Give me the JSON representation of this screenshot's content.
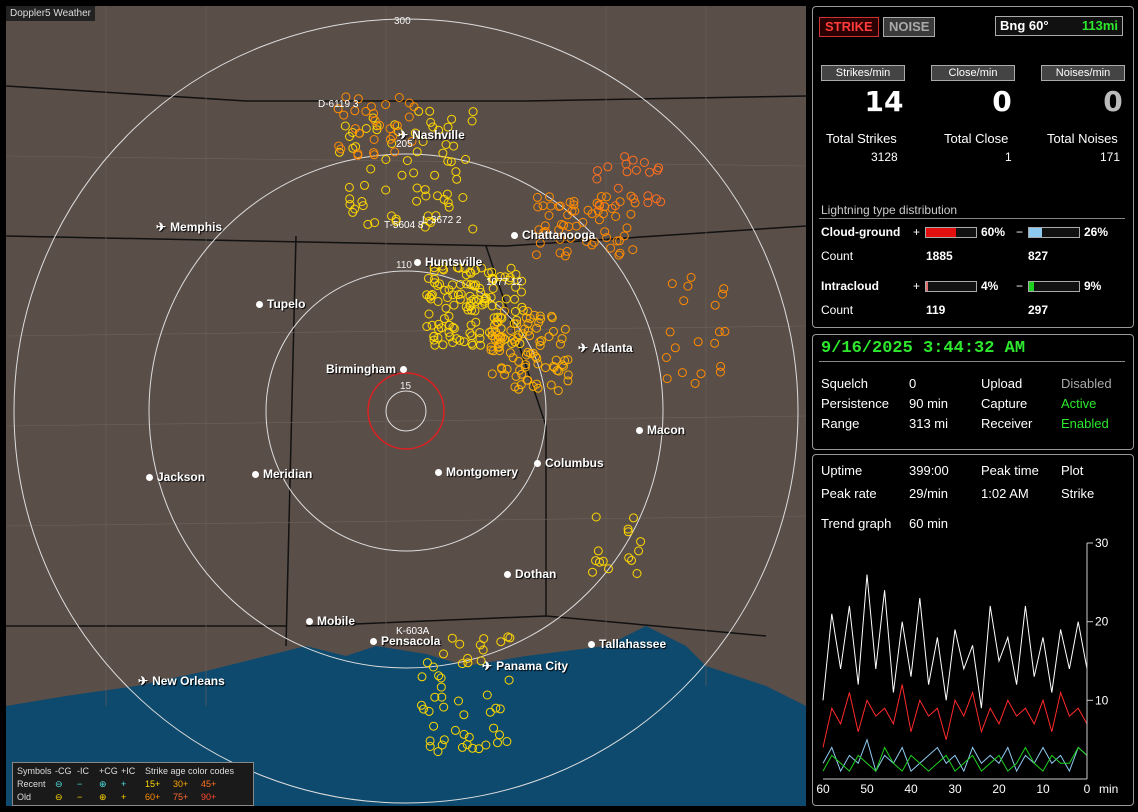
{
  "map": {
    "title": "Doppler5 Weather",
    "rings": [
      "300",
      "110",
      "15"
    ],
    "cities": [
      {
        "name": "Nashville",
        "icon": "airport-icon"
      },
      {
        "name": "Memphis",
        "icon": "airport-icon"
      },
      {
        "name": "Chattanooga",
        "icon": "city-dot"
      },
      {
        "name": "Huntsville",
        "icon": "city-dot"
      },
      {
        "name": "Tupelo",
        "icon": "city-dot"
      },
      {
        "name": "Atlanta",
        "icon": "airport-icon"
      },
      {
        "name": "Birmingham",
        "icon": "city-dot"
      },
      {
        "name": "Macon",
        "icon": "city-dot"
      },
      {
        "name": "Jackson",
        "icon": "city-dot"
      },
      {
        "name": "Meridian",
        "icon": "city-dot"
      },
      {
        "name": "Montgomery",
        "icon": "city-dot"
      },
      {
        "name": "Columbus",
        "icon": "city-dot"
      },
      {
        "name": "Dothan",
        "icon": "city-dot"
      },
      {
        "name": "Mobile",
        "icon": "city-dot"
      },
      {
        "name": "Pensacola",
        "icon": "city-dot"
      },
      {
        "name": "Tallahassee",
        "icon": "city-dot"
      },
      {
        "name": "Panama City",
        "icon": "airport-icon"
      },
      {
        "name": "New Orleans",
        "icon": "airport-icon"
      }
    ],
    "sensors": [
      "D-6119  3",
      "205",
      "T-5604  8",
      "L-3672  2",
      "1077  12",
      "K-603A"
    ],
    "legend": {
      "symbols": "Symbols",
      "cols": [
        "-CG",
        "-IC",
        "+CG",
        "+IC"
      ],
      "age_title": "Strike age color codes",
      "recent": "Recent",
      "old": "Old",
      "recent_ages": [
        "15+",
        "30+",
        "45+"
      ],
      "old_ages": [
        "60+",
        "75+",
        "90+"
      ]
    }
  },
  "status": {
    "strike_btn": "STRIKE",
    "noise_btn": "NOISE",
    "bearing": "Bng 60°",
    "range": "113mi",
    "headers": [
      "Strikes/min",
      "Close/min",
      "Noises/min"
    ],
    "values": [
      "14",
      "0",
      "0"
    ],
    "totals_labels": [
      "Total Strikes",
      "Total Close",
      "Total Noises"
    ],
    "totals": [
      "3128",
      "1",
      "171"
    ],
    "dist_title": "Lightning type distribution",
    "cg_label": "Cloud-ground",
    "ic_label": "Intracloud",
    "count_label": "Count",
    "plus": "+",
    "minus": "−",
    "cg_pos_pct": "60%",
    "cg_neg_pct": "26%",
    "cg_pos_count": "1885",
    "cg_neg_count": "827",
    "ic_pos_pct": "4%",
    "ic_neg_pct": "9%",
    "ic_pos_count": "119",
    "ic_neg_count": "297",
    "bars": {
      "cg_pos": 0.6,
      "cg_neg": 0.26,
      "ic_pos": 0.04,
      "ic_neg": 0.09
    },
    "colors": {
      "cg_pos": "#e31010",
      "cg_neg": "#8ec9f0",
      "ic_pos": "#e07070",
      "ic_neg": "#1ed01e"
    }
  },
  "settings": {
    "timestamp": "9/16/2025 3:44:32 AM",
    "rows": [
      {
        "k": "Squelch",
        "v": "0",
        "k2": "Upload",
        "v2": "Disabled"
      },
      {
        "k": "Persistence",
        "v": "90 min",
        "k2": "Capture",
        "v2": "Active"
      },
      {
        "k": "Range",
        "v": "313 mi",
        "k2": "Receiver",
        "v2": "Enabled"
      }
    ]
  },
  "trend": {
    "uptime_label": "Uptime",
    "uptime": "399:00",
    "peak_time_label": "Peak time",
    "peak_time": "1:02 AM",
    "plot_label": "Plot",
    "plot": "Strike",
    "peak_rate_label": "Peak rate",
    "peak_rate": "29/min",
    "trend_label": "Trend graph",
    "trend_value": "60 min",
    "x_ticks": [
      "60",
      "50",
      "40",
      "30",
      "20",
      "10",
      "0"
    ],
    "x_unit": "min",
    "y_ticks": [
      "30",
      "20",
      "10"
    ]
  },
  "chart_data": {
    "type": "line",
    "title": "",
    "xlabel": "min",
    "ylabel": "",
    "xlim": [
      60,
      0
    ],
    "ylim": [
      0,
      30
    ],
    "x": [
      60,
      58,
      56,
      54,
      52,
      50,
      48,
      46,
      44,
      42,
      40,
      38,
      36,
      34,
      32,
      30,
      28,
      26,
      24,
      22,
      20,
      18,
      16,
      14,
      12,
      10,
      8,
      6,
      4,
      2,
      0
    ],
    "series": [
      {
        "values": [
          10,
          21,
          14,
          22,
          12,
          26,
          14,
          24,
          11,
          20,
          13,
          23,
          12,
          18,
          10,
          19,
          14,
          17,
          9,
          22,
          15,
          18,
          12,
          22,
          13,
          18,
          11,
          19,
          14,
          20,
          14
        ]
      },
      {
        "values": [
          4,
          9,
          7,
          11,
          6,
          10,
          8,
          9,
          7,
          12,
          6,
          10,
          8,
          9,
          5,
          10,
          8,
          11,
          6,
          9,
          7,
          10,
          8,
          9,
          7,
          10,
          6,
          11,
          8,
          9,
          7
        ]
      },
      {
        "values": [
          2,
          4,
          1,
          3,
          2,
          5,
          1,
          3,
          2,
          4,
          1,
          2,
          3,
          4,
          2,
          3,
          1,
          4,
          2,
          3,
          2,
          4,
          1,
          3,
          2,
          4,
          2,
          3,
          1,
          4,
          3
        ]
      },
      {
        "values": [
          1,
          3,
          2,
          1,
          3,
          2,
          1,
          4,
          2,
          1,
          3,
          2,
          1,
          2,
          3,
          1,
          2,
          3,
          1,
          2,
          3,
          1,
          2,
          4,
          2,
          1,
          3,
          2,
          2,
          4,
          3
        ]
      }
    ],
    "colors": [
      "#ffffff",
      "#ff2a2a",
      "#8ec9f0",
      "#1ed01e"
    ]
  }
}
